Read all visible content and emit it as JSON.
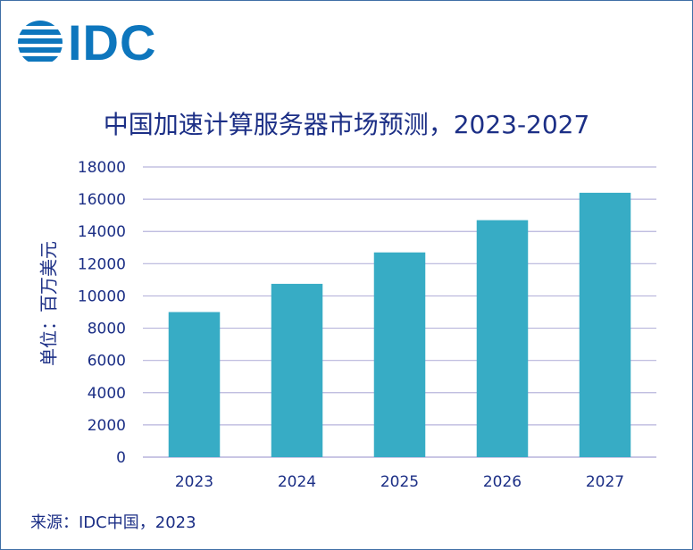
{
  "logo": {
    "text": "IDC"
  },
  "source": "来源：IDC中国，2023",
  "chart_data": {
    "type": "bar",
    "title": "中国加速计算服务器市场预测，2023-2027",
    "ylabel": "单位：百万美元",
    "xlabel": "",
    "categories": [
      "2023",
      "2024",
      "2025",
      "2026",
      "2027"
    ],
    "values": [
      9000,
      10750,
      12700,
      14700,
      16400
    ],
    "ylim": [
      0,
      18000
    ],
    "yticks": [
      0,
      2000,
      4000,
      6000,
      8000,
      10000,
      12000,
      14000,
      16000,
      18000
    ],
    "grid": true,
    "legend": "none",
    "colors": {
      "bar": "#37acc5",
      "grid": "#b7b4dc",
      "text": "#1c2f86"
    }
  }
}
